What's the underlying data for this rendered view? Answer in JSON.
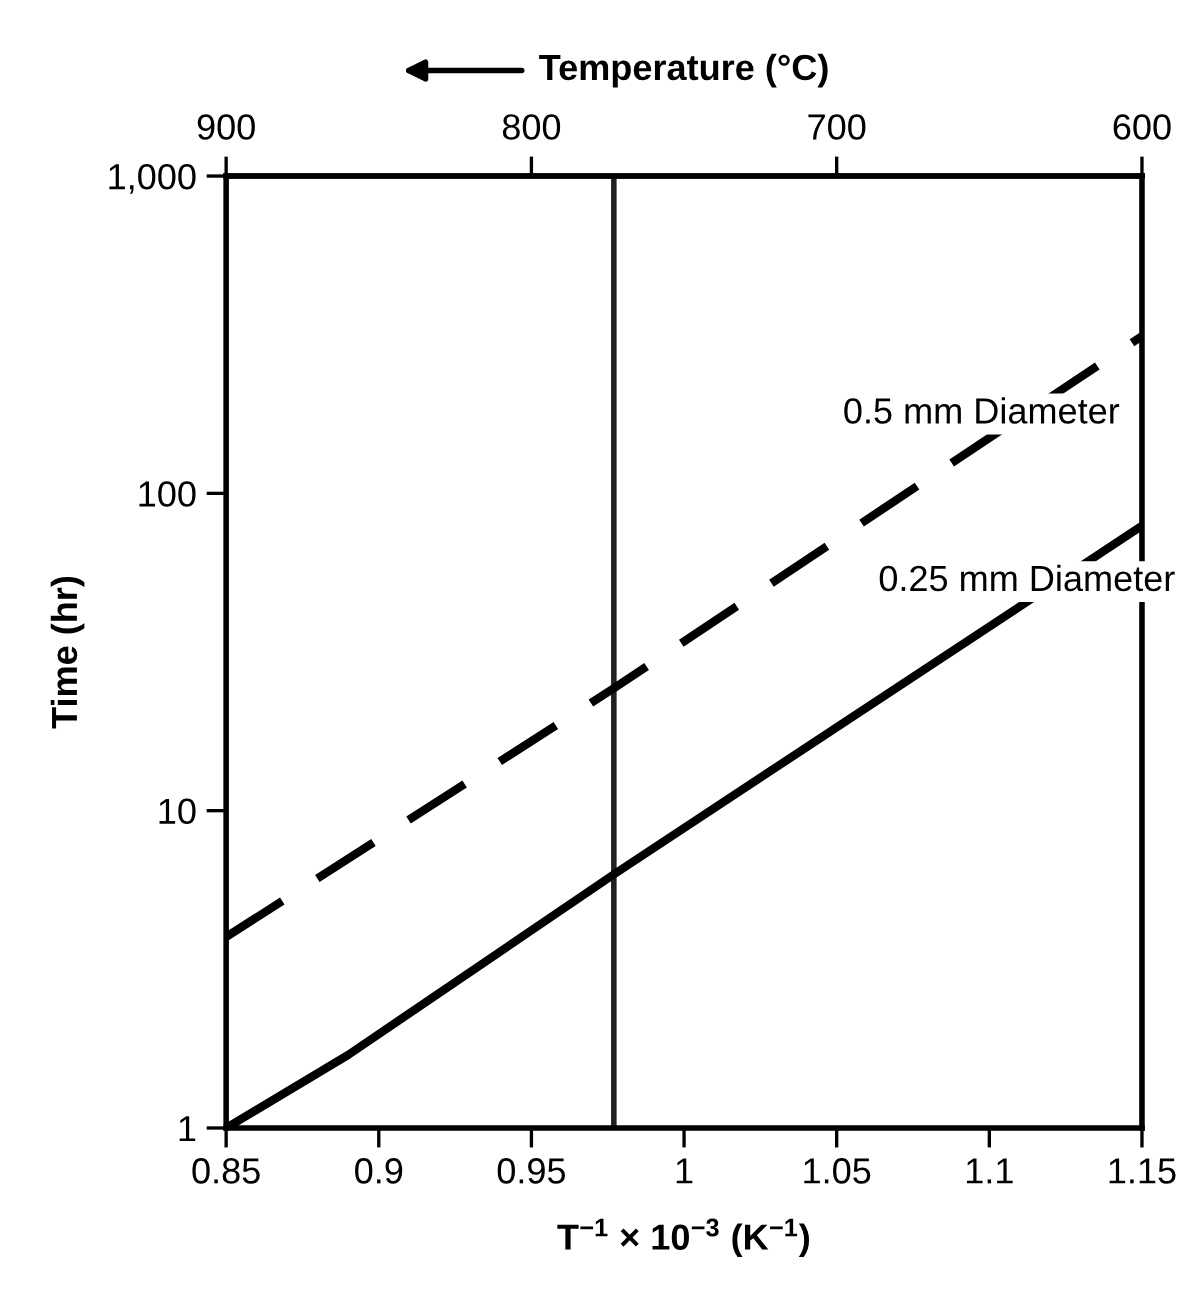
{
  "chart_data": {
    "type": "line",
    "xlabel": "T$^{−1}$ × 10$^{−3}$ (K$^{−1}$)",
    "ylabel": "Time (hr)",
    "x2label": "Temperature (°C)",
    "xlim": [
      0.85,
      1.15
    ],
    "xticks": [
      0.85,
      0.9,
      0.95,
      1,
      1.05,
      1.1,
      1.15
    ],
    "x2lim": [
      900,
      600
    ],
    "x2ticks": [
      900,
      800,
      700,
      600
    ],
    "ylim": [
      1,
      1000
    ],
    "yticks": [
      1,
      10,
      100,
      {
        "value": 1000,
        "label": "1,000"
      }
    ],
    "log": "y",
    "grid": false,
    "legend": false,
    "marker": "none",
    "ref_lines": [
      {
        "axis": "x",
        "value": 0.977,
        "color": "#231f20",
        "line_style": "solid"
      }
    ],
    "series": [
      {
        "name": "0.5 mm Diameter",
        "color": "#000000",
        "line_style": "dashed",
        "x": [
          0.85,
          0.977,
          1.15
        ],
        "values": [
          4.0,
          24.3,
          313
        ]
      },
      {
        "name": "0.25 mm Diameter",
        "color": "#000000",
        "line_style": "solid",
        "x": [
          0.85,
          0.89,
          0.977,
          1.15
        ],
        "values": [
          1,
          1.7,
          6.3,
          79
        ]
      }
    ]
  }
}
